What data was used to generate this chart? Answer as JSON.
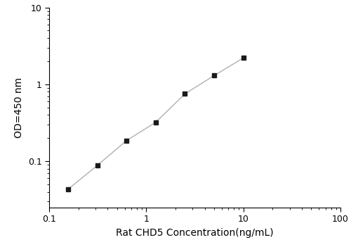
{
  "x_values": [
    0.156,
    0.313,
    0.625,
    1.25,
    2.5,
    5.0,
    10.0
  ],
  "y_values": [
    0.043,
    0.088,
    0.185,
    0.32,
    0.75,
    1.3,
    2.2
  ],
  "xlabel": "Rat CHD5 Concentration(ng/mL)",
  "ylabel": "OD=450 nm",
  "xlim": [
    0.1,
    100
  ],
  "ylim": [
    0.025,
    10
  ],
  "line_color": "#b0b0b0",
  "marker_color": "#1a1a1a",
  "marker": "s",
  "marker_size": 5,
  "line_width": 1.0,
  "xlabel_fontsize": 10,
  "ylabel_fontsize": 10,
  "tick_fontsize": 9,
  "background_color": "#ffffff"
}
